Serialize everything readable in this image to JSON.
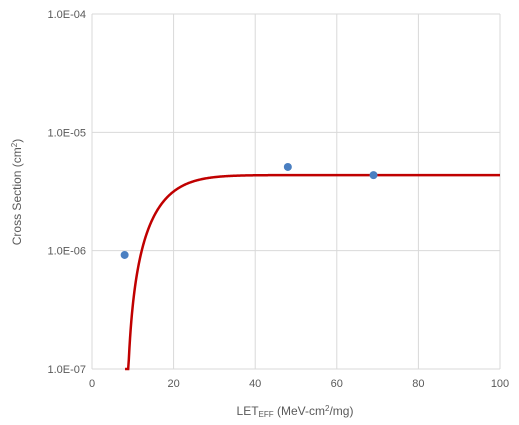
{
  "chart_data": {
    "type": "scatter",
    "title": "",
    "xlabel": {
      "main": "LET",
      "sub": "EFF",
      "rest": " (MeV-cm",
      "sup": "2",
      "tail": "/mg)"
    },
    "ylabel": {
      "main": "Cross Section (cm",
      "sup": "2",
      "tail": ")"
    },
    "xlim": [
      0,
      100
    ],
    "ylim": [
      1e-07,
      0.0001
    ],
    "yscale": "log",
    "grid": true,
    "x_ticks": [
      0,
      20,
      40,
      60,
      80,
      100
    ],
    "y_ticks": [
      {
        "value": 1e-07,
        "label": "1.0E-07"
      },
      {
        "value": 1e-06,
        "label": "1.0E-06"
      },
      {
        "value": 1e-05,
        "label": "1.0E-05"
      },
      {
        "value": 0.0001,
        "label": "1.0E-04"
      }
    ],
    "series": [
      {
        "type": "scatter",
        "color": "#4a7fc1",
        "points": [
          {
            "x": 8,
            "y": 9.2e-07
          },
          {
            "x": 48,
            "y": 5.1e-06
          },
          {
            "x": 69,
            "y": 4.35e-06
          }
        ]
      },
      {
        "type": "fit",
        "color": "#c00000",
        "model": "weibull",
        "params": {
          "sat": 4.35e-06,
          "onset": 8.1,
          "width": 10,
          "shape": 1.5
        },
        "x_range": [
          8.1,
          100
        ]
      }
    ]
  }
}
